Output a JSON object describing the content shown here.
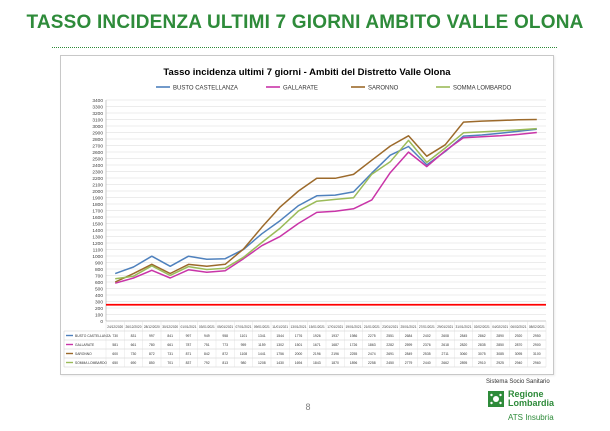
{
  "slide": {
    "title": "TASSO INCIDENZA ULTIMI 7 GIORNI AMBITO VALLE OLONA",
    "page_number": "8"
  },
  "logo": {
    "tagline": "Sistema Socio Sanitario",
    "region_line1": "Regione",
    "region_line2": "Lombardia",
    "ats": "ATS Insubria"
  },
  "colors": {
    "title_green": "#2e8b3a",
    "threshold_red": "#ff0000"
  },
  "chart_data": {
    "type": "line",
    "title": "Tasso incidenza ultimi 7 giorni - Ambiti del Distretto Valle Olona",
    "legend_position": "top",
    "grid": true,
    "ylim": [
      0,
      3400
    ],
    "ystep": 100,
    "xlabel": "",
    "ylabel": "",
    "threshold": 250,
    "threshold_color": "#ff0000",
    "categories": [
      "24/12/2020",
      "26/12/2020",
      "28/12/2020",
      "30/12/2020",
      "01/01/2021",
      "03/01/2021",
      "05/01/2021",
      "07/01/2021",
      "09/01/2021",
      "11/01/2021",
      "13/01/2021",
      "15/01/2021",
      "17/01/2021",
      "19/01/2021",
      "21/01/2021",
      "23/01/2021",
      "25/01/2021",
      "27/01/2021",
      "29/01/2021",
      "31/01/2021",
      "02/02/2021",
      "04/02/2021",
      "06/02/2021",
      "08/02/2021"
    ],
    "series": [
      {
        "name": "BUSTO CASTELLANZA",
        "color": "#4f81bd",
        "values": [
          730,
          831,
          997,
          841,
          997,
          949,
          958,
          1101,
          1341,
          1544,
          1776,
          1926,
          1937,
          1986,
          2275,
          2551,
          2684,
          2402,
          2608,
          2845,
          2862,
          2890,
          2920,
          2950
        ]
      },
      {
        "name": "GALLARATE",
        "color": "#c935a8",
        "values": [
          581,
          661,
          780,
          661,
          787,
          751,
          773,
          959,
          1159,
          1302,
          1501,
          1671,
          1687,
          1726,
          1863,
          2282,
          2599,
          2376,
          2618,
          2820,
          2835,
          2850,
          2870,
          2900
        ]
      },
      {
        "name": "SARONNO",
        "color": "#9c6a2b",
        "values": [
          600,
          730,
          872,
          731,
          871,
          842,
          872,
          1108,
          1441,
          1756,
          2000,
          2196,
          2196,
          2255,
          2474,
          2691,
          2849,
          2535,
          2711,
          3060,
          3075,
          3085,
          3095,
          3100
        ]
      },
      {
        "name": "SOMMA LOMBARDO",
        "color": "#9bbb59",
        "values": [
          650,
          690,
          850,
          701,
          837,
          792,
          813,
          980,
          1208,
          1430,
          1694,
          1843,
          1870,
          1896,
          2258,
          2450,
          2779,
          2440,
          2662,
          2895,
          2910,
          2925,
          2940,
          2960
        ]
      }
    ]
  }
}
